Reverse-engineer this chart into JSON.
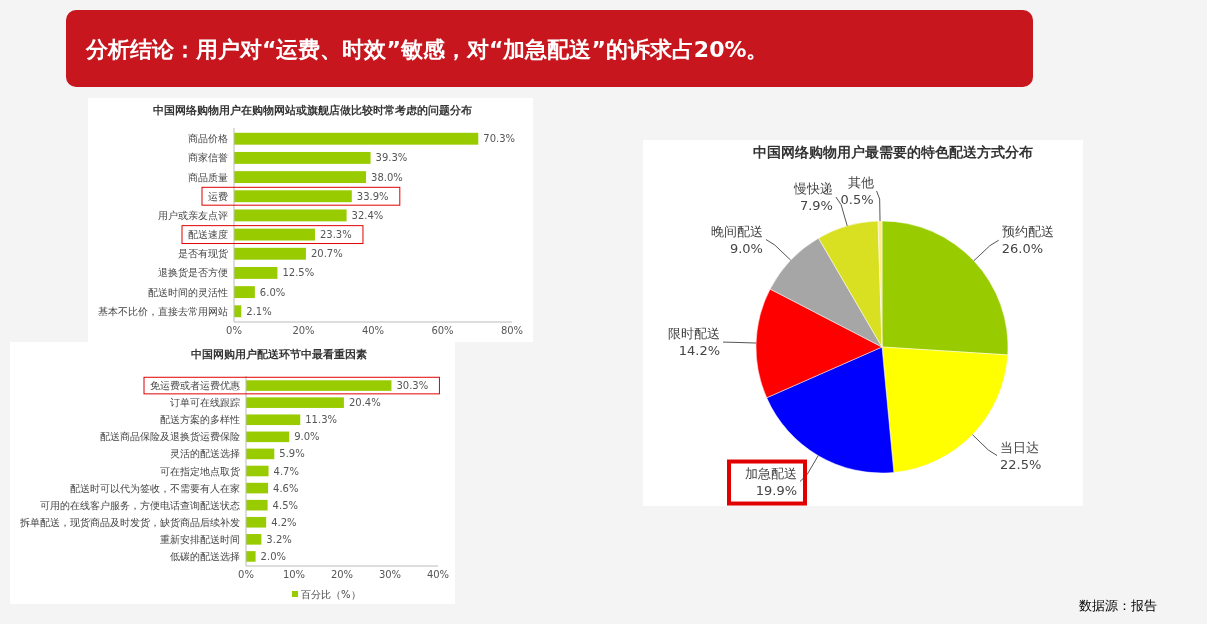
{
  "chart_data": [
    {
      "type": "bar",
      "orientation": "horizontal",
      "title": "中国网络购物用户在购物网站或旗舰店做比较时常考虑的问题分布",
      "categories": [
        "商品价格",
        "商家信誉",
        "商品质量",
        "运费",
        "用户或亲友点评",
        "配送速度",
        "是否有现货",
        "退换货是否方便",
        "配送时间的灵活性",
        "基本不比价，直接去常用网站"
      ],
      "values": [
        70.3,
        39.3,
        38.0,
        33.9,
        32.4,
        23.3,
        20.7,
        12.5,
        6.0,
        2.1
      ],
      "value_labels": [
        "70.3%",
        "39.3%",
        "38.0%",
        "33.9%",
        "32.4%",
        "23.3%",
        "20.7%",
        "12.5%",
        "6.0%",
        "2.1%"
      ],
      "color": "#99cc00",
      "xlim": [
        0,
        80
      ],
      "xticks": [
        {
          "value": 0,
          "label": "0%"
        },
        {
          "value": 20,
          "label": "20%"
        },
        {
          "value": 40,
          "label": "40%"
        },
        {
          "value": 60,
          "label": "60%"
        },
        {
          "value": 80,
          "label": "80%"
        }
      ]
    },
    {
      "type": "bar",
      "orientation": "horizontal",
      "title": "中国网购用户配送环节中最看重因素",
      "categories": [
        "免运费或者运费优惠",
        "订单可在线跟踪",
        "配送方案的多样性",
        "配送商品保险及退换货运费保险",
        "灵活的配送选择",
        "可在指定地点取货",
        "配送时可以代为签收，不需要有人在家",
        "可用的在线客户服务，方便电话查询配送状态",
        "拆单配送，现货商品及时发货，缺货商品后续补发",
        "重新安排配送时间",
        "低碳的配送选择"
      ],
      "series": [
        {
          "name": "百分比（%）",
          "color": "#99cc00",
          "values": [
            30.3,
            20.4,
            11.3,
            9.0,
            5.9,
            4.7,
            4.6,
            4.5,
            4.2,
            3.2,
            2.0
          ],
          "value_labels": [
            "30.3%",
            "20.4%",
            "11.3%",
            "9.0%",
            "5.9%",
            "4.7%",
            "4.6%",
            "4.5%",
            "4.2%",
            "3.2%",
            "2.0%"
          ]
        }
      ],
      "xlim": [
        0,
        40
      ],
      "xticks": [
        {
          "value": 0,
          "label": "0%"
        },
        {
          "value": 10,
          "label": "10%"
        },
        {
          "value": 20,
          "label": "20%"
        },
        {
          "value": 30,
          "label": "30%"
        },
        {
          "value": 40,
          "label": "40%"
        }
      ],
      "legend": "bottom"
    },
    {
      "type": "pie",
      "title": "中国网络购物用户最需要的特色配送方式分布",
      "categories": [
        "预约配送",
        "当日达",
        "加急配送",
        "限时配送",
        "晚间配送",
        "慢快递",
        "其他"
      ],
      "values": [
        26.0,
        22.5,
        19.9,
        14.2,
        9.0,
        7.9,
        0.5
      ],
      "value_labels": [
        "26.0%",
        "22.5%",
        "19.9%",
        "14.2%",
        "9.0%",
        "7.9%",
        "0.5%"
      ],
      "colors": [
        "#99cc00",
        "#ffff00",
        "#0000ff",
        "#ff0000",
        "#a6a6a6",
        "#d9e021",
        "#ffee88"
      ]
    },
    {
      "type": "other",
      "title": "分析结论：用户对“运费、时效”敏感，对“加急配送”的诉求占20%。",
      "annotations": [
        "数据源：报告"
      ]
    }
  ]
}
